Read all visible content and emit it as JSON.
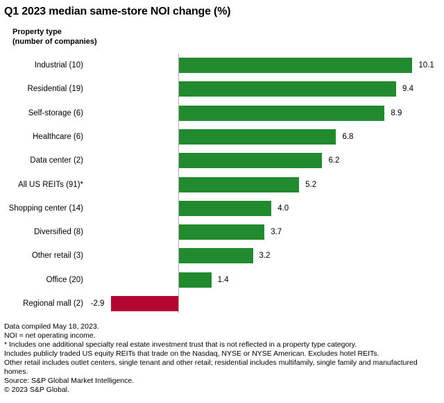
{
  "title": "Q1 2023 median same-store NOI change (%)",
  "y_axis_header": {
    "line1": "Property type",
    "line2": "(number of companies)"
  },
  "chart_data": {
    "type": "bar",
    "orientation": "horizontal",
    "title": "Q1 2023 median same-store NOI change (%)",
    "xlabel": "",
    "ylabel": "Property type (number of companies)",
    "categories": [
      "Industrial (10)",
      "Residential (19)",
      "Self-storage (6)",
      "Healthcare (6)",
      "Data center (2)",
      "All US REITs (91)*",
      "Shopping center (14)",
      "Diversified (8)",
      "Other retail (3)",
      "Office (20)",
      "Regional mall (2)"
    ],
    "values": [
      10.1,
      9.4,
      8.9,
      6.8,
      6.2,
      5.2,
      4.0,
      3.7,
      3.2,
      1.4,
      -2.9
    ],
    "xlim": [
      -3,
      11.5
    ],
    "grid": false,
    "legend": false,
    "value_decimals": 1,
    "colors": {
      "positive_bar": "#228a2e",
      "negative_bar": "#b5042f",
      "axis_line": "#b0b0b0"
    }
  },
  "footnotes": [
    "Data compiled May 18, 2023.",
    "NOI = net operating income.",
    "* Includes one additional specialty real estate investment trust that is not reflected in a property type category.",
    "Includes publicly traded US equity REITs that trade on the Nasdaq, NYSE or NYSE American. Excludes hotel REITs.",
    "Other retail includes outlet centers, single tenant and other retail; residential includes multifamily, single family and manufactured homes.",
    "Source: S&P Global Market Intelligence.",
    "© 2023 S&P Global."
  ]
}
